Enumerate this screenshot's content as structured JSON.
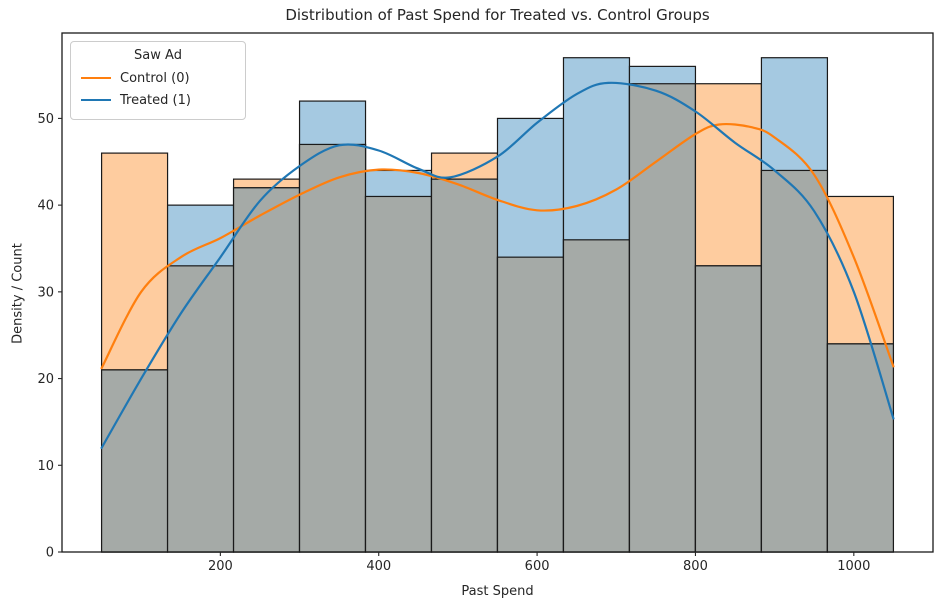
{
  "title": "Distribution of Past Spend for Treated vs. Control Groups",
  "legend": {
    "title": "Saw Ad",
    "entries": [
      {
        "label": "Control (0)",
        "color": "#ff7f0e"
      },
      {
        "label": "Treated (1)",
        "color": "#1f77b4"
      }
    ]
  },
  "chart_data": {
    "type": "histogram+kde",
    "title": "Distribution of Past Spend for Treated vs. Control Groups",
    "xlabel": "Past Spend",
    "ylabel": "Density / Count",
    "xlim": [
      0,
      1100
    ],
    "ylim": [
      0,
      59.85
    ],
    "x_ticks": [
      200,
      400,
      600,
      800,
      1000
    ],
    "y_ticks": [
      0,
      10,
      20,
      30,
      40,
      50
    ],
    "grid": false,
    "legend_position": "upper left",
    "bin_edges": [
      50,
      133.33,
      216.67,
      300,
      383.33,
      466.67,
      550,
      633.33,
      716.67,
      800,
      883.33,
      966.67,
      1050
    ],
    "series": [
      {
        "name": "Control (0)",
        "counts": [
          46,
          33,
          43,
          47,
          41,
          46,
          34,
          36,
          54,
          54,
          44,
          41
        ],
        "fill": "#fecc9f",
        "line": "#ff7f0e",
        "kde": [
          [
            50,
            21.2
          ],
          [
            100,
            30.0
          ],
          [
            150,
            34.0
          ],
          [
            200,
            36.2
          ],
          [
            250,
            38.8
          ],
          [
            300,
            41.2
          ],
          [
            350,
            43.2
          ],
          [
            400,
            44.1
          ],
          [
            450,
            43.7
          ],
          [
            500,
            42.4
          ],
          [
            550,
            40.6
          ],
          [
            600,
            39.4
          ],
          [
            650,
            39.9
          ],
          [
            700,
            41.8
          ],
          [
            750,
            45.0
          ],
          [
            800,
            48.2
          ],
          [
            830,
            49.3
          ],
          [
            870,
            49.0
          ],
          [
            900,
            47.8
          ],
          [
            950,
            43.5
          ],
          [
            1000,
            34.0
          ],
          [
            1050,
            21.4
          ]
        ]
      },
      {
        "name": "Treated (1)",
        "counts": [
          21,
          40,
          42,
          52,
          44,
          43,
          50,
          57,
          56,
          33,
          57,
          24
        ],
        "fill": "#a5c9e1",
        "line": "#1f77b4",
        "kde": [
          [
            50,
            12.0
          ],
          [
            100,
            20.0
          ],
          [
            150,
            27.5
          ],
          [
            200,
            34.0
          ],
          [
            250,
            40.5
          ],
          [
            300,
            44.5
          ],
          [
            350,
            46.9
          ],
          [
            400,
            46.3
          ],
          [
            450,
            44.2
          ],
          [
            490,
            43.2
          ],
          [
            550,
            45.6
          ],
          [
            600,
            49.5
          ],
          [
            650,
            52.8
          ],
          [
            690,
            54.1
          ],
          [
            750,
            53.2
          ],
          [
            800,
            50.8
          ],
          [
            850,
            47.2
          ],
          [
            900,
            44.0
          ],
          [
            950,
            39.3
          ],
          [
            1000,
            30.0
          ],
          [
            1050,
            15.4
          ]
        ]
      }
    ],
    "overlap_fill": "#a5aaa7",
    "bar_edge": "#1a1a1a",
    "spine_color": "#1a1a1a",
    "tick_color": "#262626"
  }
}
